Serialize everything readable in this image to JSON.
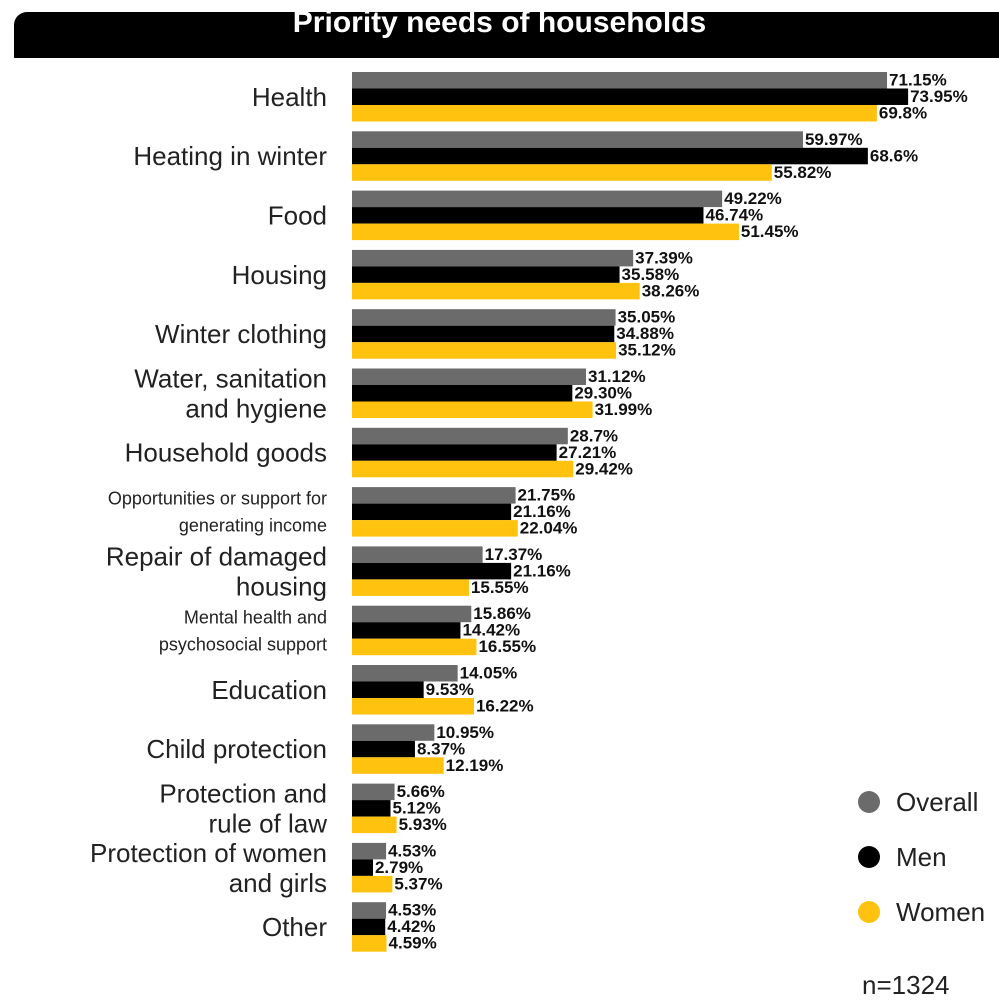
{
  "chart_data": {
    "type": "bar",
    "orientation": "horizontal",
    "title": "Priority needs of households",
    "categories": [
      [
        "Health"
      ],
      [
        "Heating in winter"
      ],
      [
        "Food"
      ],
      [
        "Housing"
      ],
      [
        "Winter clothing"
      ],
      [
        "Water, sanitation",
        "and hygiene"
      ],
      [
        "Household goods"
      ],
      [
        "Opportunities or support  for",
        "generating income"
      ],
      [
        "Repair of damaged",
        "housing"
      ],
      [
        "Mental health and",
        "psychosocial support"
      ],
      [
        "Education"
      ],
      [
        "Child protection"
      ],
      [
        "Protection and",
        "rule of law"
      ],
      [
        "Protection of women",
        "and girls"
      ],
      [
        "Other"
      ]
    ],
    "series": [
      {
        "name": "Overall",
        "color": "#6b6b6b",
        "values": [
          71.15,
          59.97,
          49.22,
          37.39,
          35.05,
          31.12,
          28.7,
          21.75,
          17.37,
          15.86,
          14.05,
          10.95,
          5.66,
          4.53,
          4.53
        ],
        "labels": [
          "71.15%",
          "59.97%",
          "49.22%",
          "37.39%",
          "35.05%",
          "31.12%",
          "28.7%",
          "21.75%",
          "17.37%",
          "15.86%",
          "14.05%",
          "10.95%",
          "5.66%",
          "4.53%",
          "4.53%"
        ]
      },
      {
        "name": "Men",
        "color": "#000000",
        "values": [
          73.95,
          68.6,
          46.74,
          35.58,
          34.88,
          29.3,
          27.21,
          21.16,
          21.16,
          14.42,
          9.53,
          8.37,
          5.12,
          2.79,
          4.42
        ],
        "labels": [
          "73.95%",
          "68.6%",
          "46.74%",
          "35.58%",
          "34.88%",
          "29.30%",
          "27.21%",
          "21.16%",
          "21.16%",
          "14.42%",
          "9.53%",
          "8.37%",
          "5.12%",
          "2.79%",
          "4.42%"
        ]
      },
      {
        "name": "Women",
        "color": "#ffc20e",
        "values": [
          69.8,
          55.82,
          51.45,
          38.26,
          35.12,
          31.99,
          29.42,
          22.04,
          15.55,
          16.55,
          16.22,
          12.19,
          5.93,
          5.37,
          4.59
        ],
        "labels": [
          "69.8%",
          "55.82%",
          "51.45%",
          "38.26%",
          "35.12%",
          "31.99%",
          "29.42%",
          "22.04%",
          "15.55%",
          "16.55%",
          "16.22%",
          "12.19%",
          "5.93%",
          "5.37%",
          "4.59%"
        ]
      }
    ],
    "xlim": [
      0,
      100
    ],
    "grid": false,
    "legend_position": "bottom-right"
  },
  "legend": {
    "overall": "Overall",
    "men": "Men",
    "women": "Women"
  },
  "sample_size": "n=1324"
}
